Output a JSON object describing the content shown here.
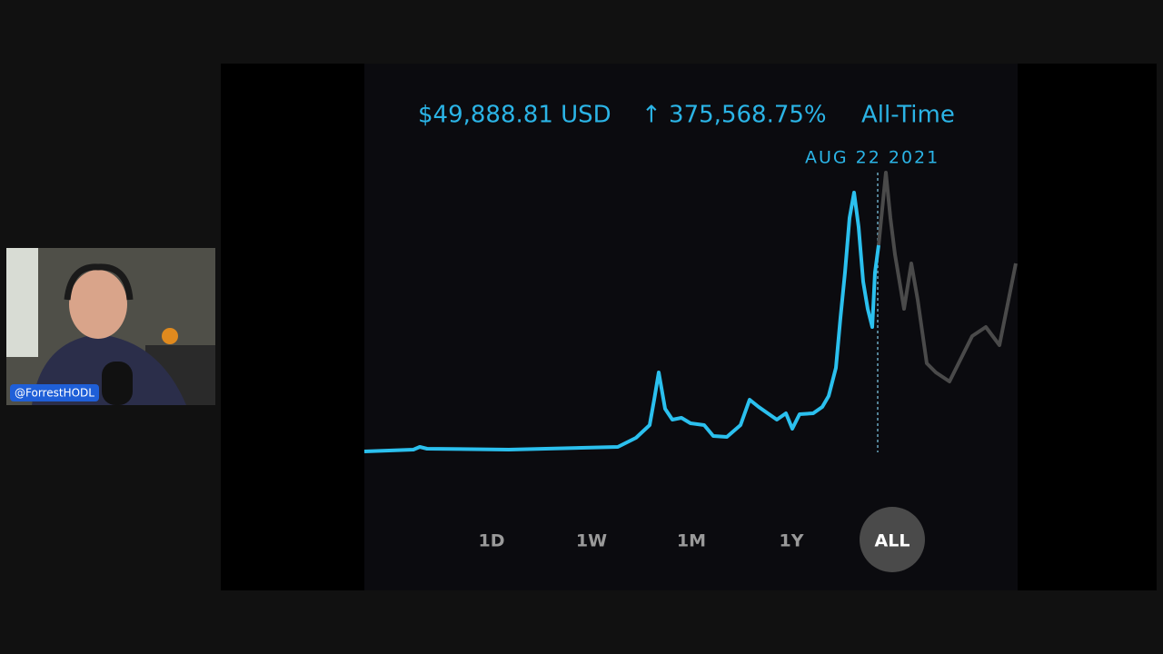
{
  "header": {
    "price": "$49,888.81 USD",
    "change": "↑ 375,568.75%",
    "period": "All-Time"
  },
  "cursor_date": "AUG 22 2021",
  "range_buttons": [
    "1D",
    "1W",
    "1M",
    "1Y",
    "ALL"
  ],
  "webcam": {
    "handle": "@ForrestHODL"
  }
}
